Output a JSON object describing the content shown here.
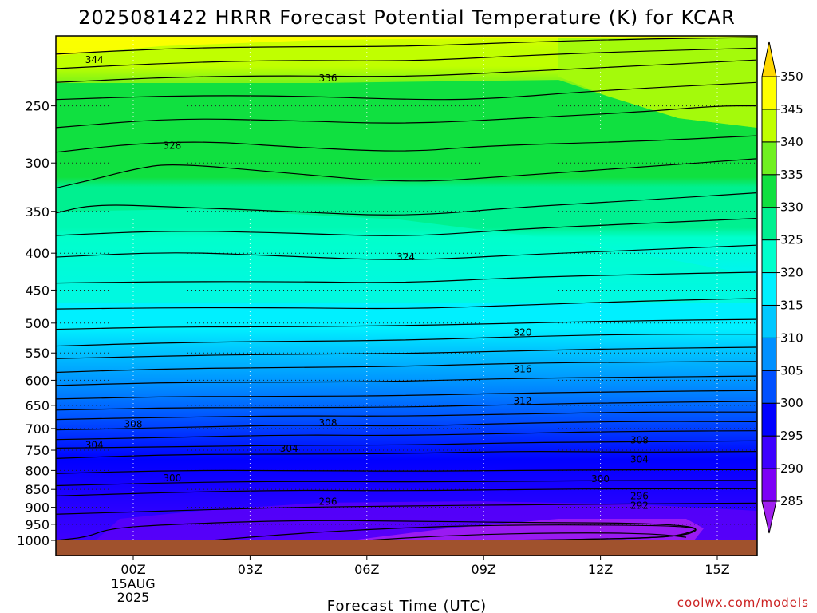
{
  "chart_data": {
    "type": "heatmap",
    "title": "2025081422 HRRR Forecast Potential Temperature (K) for KCAR",
    "xlabel": "Forecast Time (UTC)",
    "ylabel": "",
    "credit": "coolwx.com/models",
    "x_ticks": [
      {
        "hour": 0,
        "label": "00Z",
        "sub": [
          "15AUG",
          "2025"
        ]
      },
      {
        "hour": 3,
        "label": "03Z"
      },
      {
        "hour": 6,
        "label": "06Z"
      },
      {
        "hour": 9,
        "label": "09Z"
      },
      {
        "hour": 12,
        "label": "12Z"
      },
      {
        "hour": 15,
        "label": "15Z"
      }
    ],
    "x_range_hours": [
      -2,
      16
    ],
    "y_scale": "log pressure",
    "y_range_hPa": [
      1000,
      200
    ],
    "y_ticks": [
      250,
      300,
      350,
      400,
      450,
      500,
      550,
      600,
      650,
      700,
      750,
      800,
      850,
      900,
      950,
      1000
    ],
    "grid": "dotted",
    "colorbar": {
      "levels": [
        285,
        290,
        295,
        300,
        305,
        310,
        315,
        320,
        325,
        330,
        335,
        340,
        345,
        350
      ],
      "colors": [
        "#a020f0",
        "#7c00f6",
        "#3d00ff",
        "#0000ff",
        "#0050ff",
        "#0090ff",
        "#00c8ff",
        "#00f0ff",
        "#00ffcc",
        "#00f090",
        "#10e040",
        "#70f020",
        "#c0ff00",
        "#ffff00",
        "#ffd700"
      ]
    },
    "series": [
      {
        "values": [
          [
            -2,
            1000
          ],
          [
            -1.2,
            990
          ],
          [
            -0.6,
            962
          ],
          [
            1,
            950
          ],
          [
            4,
            938
          ],
          [
            7,
            940
          ],
          [
            10,
            945
          ],
          [
            13,
            946
          ],
          [
            14.6,
            958
          ],
          [
            14.2,
            980
          ],
          [
            13.5,
            992
          ],
          [
            11,
            998
          ],
          [
            9,
            1000
          ]
        ]
      },
      {
        "values": [
          [
            2,
            1000
          ],
          [
            4,
            980
          ],
          [
            6,
            966
          ],
          [
            8,
            956
          ],
          [
            10,
            952
          ],
          [
            12,
            952
          ],
          [
            14,
            955
          ],
          [
            14.6,
            965
          ],
          [
            14,
            990
          ],
          [
            11,
            998
          ]
        ]
      },
      {
        "values": [
          [
            6,
            1000
          ],
          [
            8,
            985
          ],
          [
            10,
            978
          ],
          [
            12,
            976
          ],
          [
            13.5,
            980
          ],
          [
            14.2,
            990
          ]
        ]
      },
      {
        "values": [
          [
            -2,
            920
          ],
          [
            1,
            910
          ],
          [
            4,
            900
          ],
          [
            7,
            896
          ],
          [
            10,
            893
          ],
          [
            13,
            890
          ],
          [
            16,
            888
          ]
        ]
      },
      {
        "values": [
          [
            -2,
            868
          ],
          [
            1,
            858
          ],
          [
            4,
            852
          ],
          [
            7,
            854
          ],
          [
            10,
            850
          ],
          [
            13,
            848
          ],
          [
            16,
            848
          ]
        ]
      },
      {
        "values": [
          [
            -2,
            840
          ],
          [
            1,
            832
          ],
          [
            4,
            828
          ],
          [
            7,
            830
          ],
          [
            10,
            828
          ],
          [
            13,
            826
          ],
          [
            16,
            826
          ]
        ]
      },
      {
        "values": [
          [
            -2,
            808
          ],
          [
            1,
            800
          ],
          [
            4,
            800
          ],
          [
            7,
            802
          ],
          [
            10,
            800
          ],
          [
            13,
            798
          ],
          [
            16,
            798
          ]
        ]
      },
      {
        "values": [
          [
            -2,
            770
          ],
          [
            1,
            760
          ],
          [
            4,
            760
          ],
          [
            7,
            758
          ],
          [
            10,
            752
          ],
          [
            13,
            755
          ],
          [
            16,
            753
          ]
        ]
      },
      {
        "values": [
          [
            -2,
            745
          ],
          [
            1,
            742
          ],
          [
            4,
            738
          ],
          [
            7,
            738
          ],
          [
            10,
            732
          ],
          [
            13,
            730
          ],
          [
            16,
            728
          ]
        ]
      },
      {
        "values": [
          [
            -2,
            725
          ],
          [
            1,
            720
          ],
          [
            4,
            714
          ],
          [
            7,
            716
          ],
          [
            10,
            710
          ],
          [
            13,
            706
          ],
          [
            16,
            705
          ]
        ]
      },
      {
        "values": [
          [
            -2,
            703
          ],
          [
            1,
            698
          ],
          [
            4,
            692
          ],
          [
            7,
            695
          ],
          [
            10,
            688
          ],
          [
            13,
            684
          ],
          [
            16,
            685
          ]
        ]
      },
      {
        "values": [
          [
            -2,
            680
          ],
          [
            1,
            675
          ],
          [
            4,
            672
          ],
          [
            7,
            673
          ],
          [
            10,
            668
          ],
          [
            13,
            664
          ],
          [
            16,
            664
          ]
        ]
      },
      {
        "values": [
          [
            -2,
            660
          ],
          [
            1,
            655
          ],
          [
            4,
            655
          ],
          [
            7,
            654
          ],
          [
            10,
            648
          ],
          [
            13,
            644
          ],
          [
            16,
            642
          ]
        ]
      },
      {
        "values": [
          [
            -2,
            637
          ],
          [
            1,
            632
          ],
          [
            4,
            632
          ],
          [
            7,
            630
          ],
          [
            10,
            625
          ],
          [
            13,
            622
          ],
          [
            16,
            620
          ]
        ]
      },
      {
        "values": [
          [
            -2,
            610
          ],
          [
            1,
            604
          ],
          [
            4,
            604
          ],
          [
            7,
            602
          ],
          [
            10,
            596
          ],
          [
            13,
            594
          ],
          [
            16,
            592
          ]
        ]
      },
      {
        "values": [
          [
            -2,
            585
          ],
          [
            1,
            578
          ],
          [
            4,
            576
          ],
          [
            7,
            574
          ],
          [
            10,
            568
          ],
          [
            13,
            566
          ],
          [
            16,
            565
          ]
        ]
      },
      {
        "values": [
          [
            -2,
            560
          ],
          [
            1,
            555
          ],
          [
            4,
            552
          ],
          [
            7,
            551
          ],
          [
            10,
            546
          ],
          [
            13,
            542
          ],
          [
            16,
            540
          ]
        ]
      },
      {
        "values": [
          [
            -2,
            538
          ],
          [
            1,
            532
          ],
          [
            4,
            530
          ],
          [
            7,
            528
          ],
          [
            10,
            522
          ],
          [
            13,
            518
          ],
          [
            16,
            518
          ]
        ]
      },
      {
        "values": [
          [
            -2,
            510
          ],
          [
            1,
            506
          ],
          [
            4,
            506
          ],
          [
            7,
            504
          ],
          [
            10,
            500
          ],
          [
            13,
            496
          ],
          [
            16,
            494
          ]
        ]
      },
      {
        "values": [
          [
            -2,
            478
          ],
          [
            1,
            476
          ],
          [
            4,
            476
          ],
          [
            7,
            478
          ],
          [
            10,
            472
          ],
          [
            13,
            466
          ],
          [
            16,
            462
          ]
        ]
      },
      {
        "values": [
          [
            -2,
            440
          ],
          [
            1,
            438
          ],
          [
            4,
            438
          ],
          [
            7,
            440
          ],
          [
            10,
            432
          ],
          [
            13,
            428
          ],
          [
            16,
            425
          ]
        ]
      },
      {
        "values": [
          [
            -2,
            405
          ],
          [
            1,
            398
          ],
          [
            4,
            404
          ],
          [
            7,
            410
          ],
          [
            10,
            402
          ],
          [
            13,
            396
          ],
          [
            16,
            390
          ]
        ]
      },
      {
        "values": [
          [
            -2,
            378
          ],
          [
            1,
            372
          ],
          [
            4,
            375
          ],
          [
            7,
            380
          ],
          [
            10,
            370
          ],
          [
            13,
            364
          ],
          [
            16,
            358
          ]
        ]
      },
      {
        "values": [
          [
            -2,
            352
          ],
          [
            -1,
            342
          ],
          [
            1,
            345
          ],
          [
            4,
            350
          ],
          [
            7,
            356
          ],
          [
            10,
            345
          ],
          [
            13,
            338
          ],
          [
            16,
            330
          ]
        ]
      },
      {
        "values": [
          [
            -2,
            325
          ],
          [
            -1,
            316
          ],
          [
            0,
            306
          ],
          [
            1,
            300
          ],
          [
            4,
            310
          ],
          [
            7,
            320
          ],
          [
            10,
            312
          ],
          [
            13,
            304
          ],
          [
            16,
            296
          ]
        ]
      },
      {
        "values": [
          [
            -2,
            290
          ],
          [
            0,
            282
          ],
          [
            2,
            280
          ],
          [
            4,
            285
          ],
          [
            7,
            290
          ],
          [
            9,
            284
          ],
          [
            13,
            280
          ],
          [
            16,
            275
          ]
        ]
      },
      {
        "values": [
          [
            -2,
            268
          ],
          [
            1,
            260
          ],
          [
            4,
            262
          ],
          [
            7,
            265
          ],
          [
            10,
            260
          ],
          [
            13,
            255
          ],
          [
            15,
            250
          ],
          [
            16,
            250
          ]
        ]
      },
      {
        "values": [
          [
            -2,
            245
          ],
          [
            1,
            242
          ],
          [
            4,
            242
          ],
          [
            7,
            245
          ],
          [
            9,
            245
          ],
          [
            12,
            238
          ],
          [
            16,
            232
          ]
        ]
      },
      {
        "values": [
          [
            -2,
            232
          ],
          [
            1,
            228
          ],
          [
            4,
            227
          ],
          [
            7,
            228
          ],
          [
            10,
            224
          ],
          [
            13,
            220
          ],
          [
            16,
            216
          ]
        ]
      },
      {
        "values": [
          [
            -2,
            222
          ],
          [
            1,
            218
          ],
          [
            4,
            216
          ],
          [
            7,
            217
          ],
          [
            10,
            213
          ],
          [
            13,
            210
          ],
          [
            16,
            208
          ]
        ]
      },
      {
        "values": [
          [
            -2,
            212
          ],
          [
            1,
            208
          ],
          [
            4,
            207
          ],
          [
            7,
            207
          ],
          [
            10,
            204
          ],
          [
            13,
            202
          ],
          [
            16,
            201
          ]
        ]
      }
    ],
    "contour_labels": [
      {
        "text": "344",
        "hour": -1.0,
        "p": 216
      },
      {
        "text": "336",
        "hour": 5.0,
        "p": 229
      },
      {
        "text": "328",
        "hour": 1.0,
        "p": 284
      },
      {
        "text": "324",
        "hour": 7.0,
        "p": 405
      },
      {
        "text": "320",
        "hour": 10.0,
        "p": 515
      },
      {
        "text": "316",
        "hour": 10.0,
        "p": 579
      },
      {
        "text": "312",
        "hour": 10.0,
        "p": 641
      },
      {
        "text": "308",
        "hour": 0.0,
        "p": 690
      },
      {
        "text": "308",
        "hour": 5.0,
        "p": 688
      },
      {
        "text": "308",
        "hour": 13.0,
        "p": 726
      },
      {
        "text": "304",
        "hour": -1.0,
        "p": 738
      },
      {
        "text": "304",
        "hour": 4.0,
        "p": 746
      },
      {
        "text": "304",
        "hour": 13.0,
        "p": 772
      },
      {
        "text": "300",
        "hour": 1.0,
        "p": 820
      },
      {
        "text": "300",
        "hour": 12.0,
        "p": 822
      },
      {
        "text": "296",
        "hour": 5.0,
        "p": 884
      },
      {
        "text": "296",
        "hour": 13.0,
        "p": 868
      },
      {
        "text": "292",
        "hour": 13.0,
        "p": 895
      }
    ]
  }
}
